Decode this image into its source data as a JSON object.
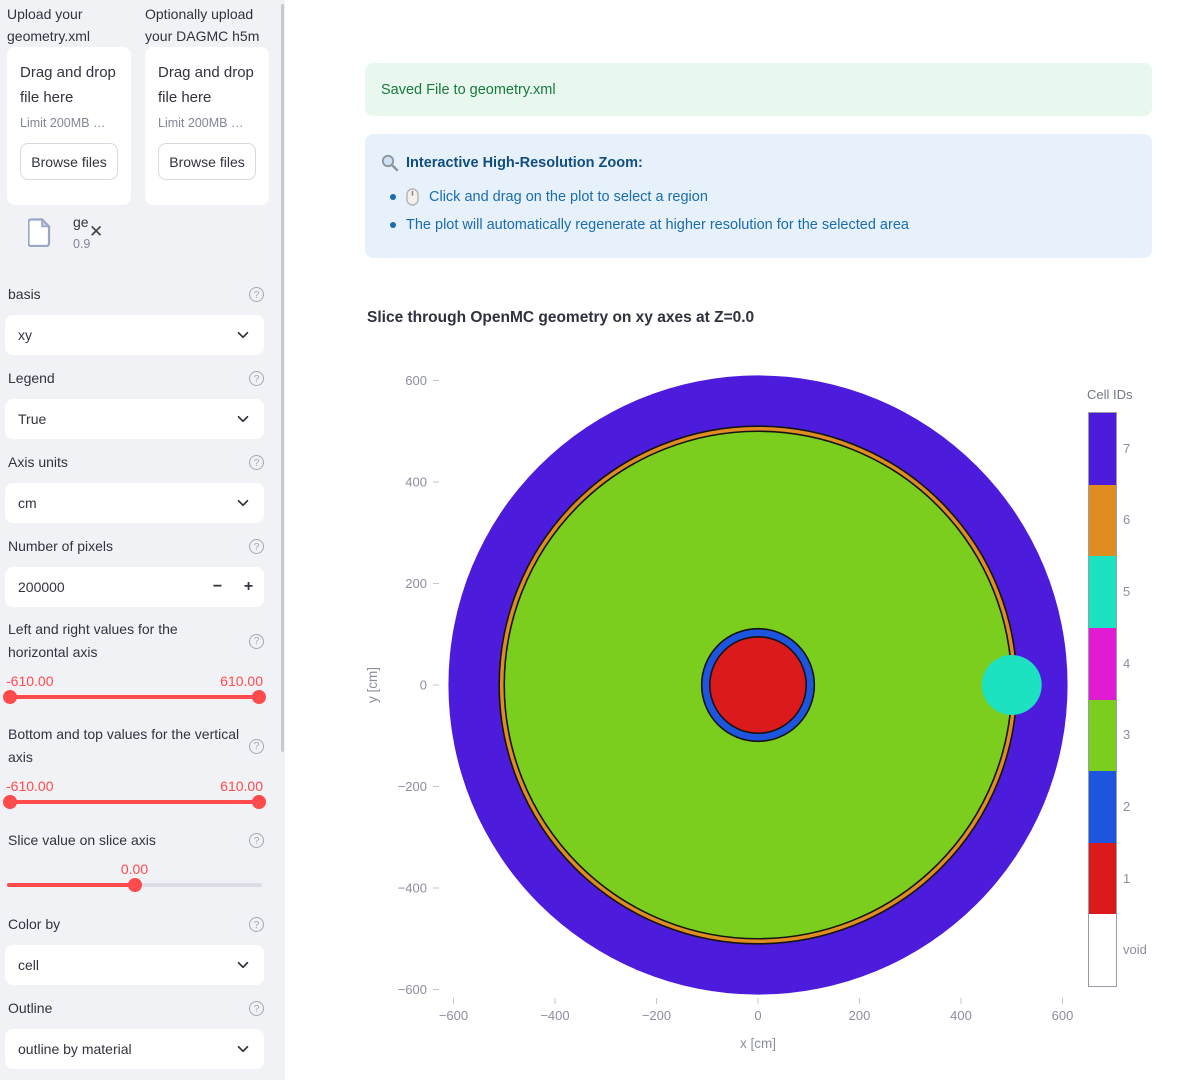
{
  "icons": {
    "help": "?",
    "close": "✕",
    "minus": "−",
    "plus": "+"
  },
  "sidebar": {
    "uploader_geometry": {
      "label": "Upload your geometry.xml",
      "drop": "Drag and drop file here",
      "limit": "Limit 200MB …",
      "browse": "Browse files"
    },
    "uploader_dagmc": {
      "label": "Optionally upload your DAGMC h5m",
      "drop": "Drag and drop file here",
      "limit": "Limit 200MB …",
      "browse": "Browse files"
    },
    "uploaded_file": {
      "name": "ge",
      "size": "0.9"
    },
    "controls": {
      "basis": {
        "label": "basis",
        "value": "xy"
      },
      "legend": {
        "label": "Legend",
        "value": "True"
      },
      "axis_units": {
        "label": "Axis units",
        "value": "cm"
      },
      "number_of_pixels": {
        "label": "Number of pixels",
        "value": "200000"
      },
      "horizontal_axis": {
        "label": "Left and right values for the horizontal axis",
        "min": "-610.00",
        "max": "610.00"
      },
      "vertical_axis": {
        "label": "Bottom and top values for the vertical axis",
        "min": "-610.00",
        "max": "610.00"
      },
      "slice_value": {
        "label": "Slice value on slice axis",
        "value": "0.00"
      },
      "color_by": {
        "label": "Color by",
        "value": "cell"
      },
      "outline": {
        "label": "Outline",
        "value": "outline by material"
      }
    }
  },
  "main": {
    "success": "Saved File to geometry.xml",
    "info_heading": "Interactive High-Resolution Zoom:",
    "info_bullets": [
      "Click and drag on the plot to select a region",
      "The plot will automatically regenerate at higher resolution for the selected area"
    ]
  },
  "chart_data": {
    "type": "heatmap",
    "title": "Slice through OpenMC geometry on xy axes at Z=0.0",
    "xlabel": "x [cm]",
    "ylabel": "y [cm]",
    "x_ticks": [
      -600,
      -400,
      -200,
      0,
      200,
      400,
      600
    ],
    "y_ticks": [
      600,
      400,
      200,
      0,
      -200,
      -400,
      -600
    ],
    "xlim": [
      -625,
      625
    ],
    "ylim": [
      -625,
      625
    ],
    "units": "cm",
    "grid": false,
    "legend_position": "right",
    "regions": [
      {
        "name": "cell-7-outer-sphere",
        "shape": "circle",
        "cx": 0,
        "cy": 0,
        "r": 610,
        "color": "#4D1BDB",
        "outline": false
      },
      {
        "name": "cell-6-ring",
        "shape": "circle",
        "cx": 0,
        "cy": 0,
        "r": 510,
        "color": "#DF8C20",
        "outline": true
      },
      {
        "name": "cell-3-inner-sphere",
        "shape": "circle",
        "cx": 0,
        "cy": 0,
        "r": 500,
        "color": "#7BCE1E",
        "outline": true
      },
      {
        "name": "cell-5-small-sphere",
        "shape": "circle",
        "cx": 500,
        "cy": 0,
        "r": 59,
        "color": "#1DE2C2",
        "outline": false
      },
      {
        "name": "cell-2-center-ring",
        "shape": "circle",
        "cx": 0,
        "cy": 0,
        "r": 111,
        "color": "#1E55DF",
        "outline": true
      },
      {
        "name": "cell-1-center-sphere",
        "shape": "circle",
        "cx": 0,
        "cy": 0,
        "r": 95,
        "color": "#DB1A1C",
        "outline": true
      }
    ],
    "colorbar": {
      "title": "Cell IDs",
      "entries": [
        {
          "label": "7",
          "color": "#4D1BDB"
        },
        {
          "label": "6",
          "color": "#DF8C20"
        },
        {
          "label": "5",
          "color": "#1DE2C2"
        },
        {
          "label": "4",
          "color": "#E01BD1"
        },
        {
          "label": "3",
          "color": "#7BCE1E"
        },
        {
          "label": "2",
          "color": "#1E55DF"
        },
        {
          "label": "1",
          "color": "#DB1A1C"
        },
        {
          "label": "void",
          "color": "#FFFFFF"
        }
      ]
    }
  }
}
